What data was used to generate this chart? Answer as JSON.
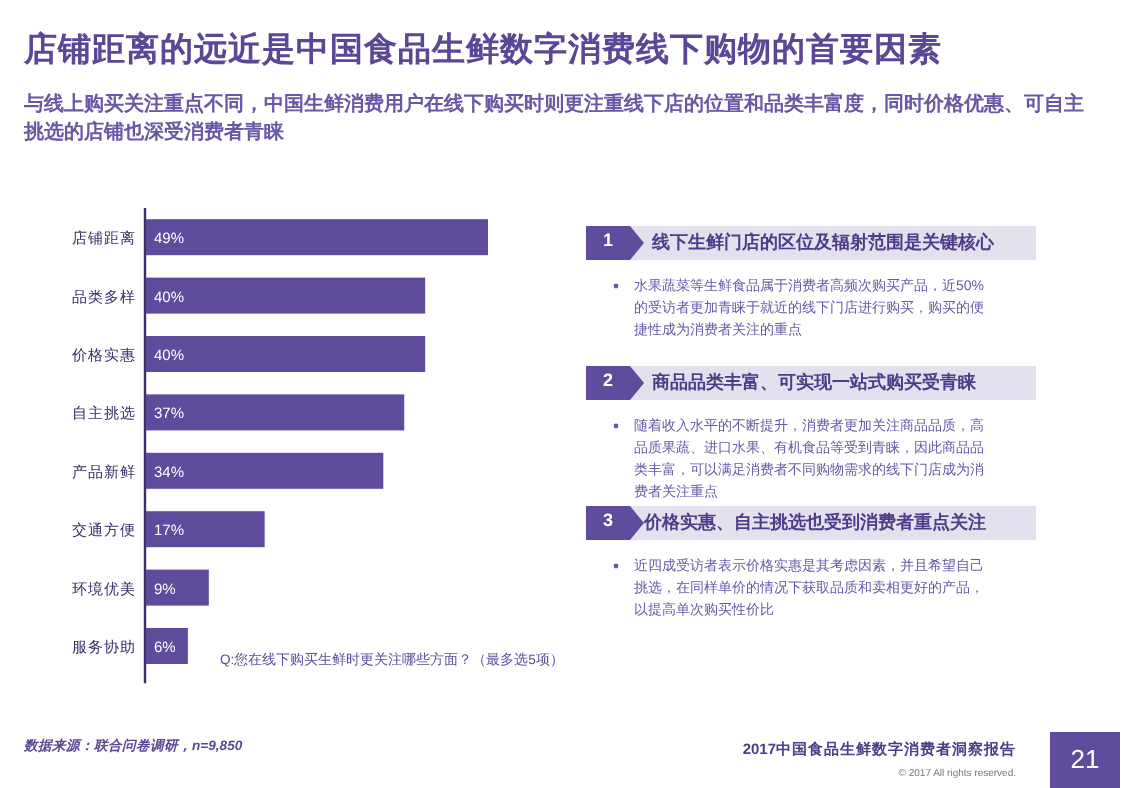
{
  "chart_data": {
    "type": "bar",
    "orientation": "horizontal",
    "title": "店铺距离的远近是中国食品生鲜数字消费线下购物的首要因素",
    "subtitle": "与线上购买关注重点不同，中国生鲜消费用户在线下购买时则更注重线下店的位置和品类丰富度，同时价格优惠、可自主挑选的店铺也深受消费者青睐",
    "categories": [
      "店铺距离",
      "品类多样",
      "价格实惠",
      "自主挑选",
      "产品新鲜",
      "交通方便",
      "环境优美",
      "服务协助"
    ],
    "values": [
      49,
      40,
      40,
      37,
      34,
      17,
      9,
      6
    ],
    "value_labels": [
      "49%",
      "40%",
      "40%",
      "37%",
      "34%",
      "17%",
      "9%",
      "6%"
    ],
    "color": "#5f4b9b",
    "annotations": [
      "Q:您在线下购买生鲜时更关注哪些方面？（最多选5项）",
      "1",
      "线下生鲜门店的区位及辐射范围是关键核心",
      "水果蔬菜等生鲜食品属于消费者高频次购买产品，近50%的受访者更加青睐于就近的线下门店进行购买，购买的便捷性成为消费者关注的重点",
      "2",
      "商品品类丰富、可实现一站式购买受青睐",
      "随着收入水平的不断提升，消费者更加关注商品品质，高品质果蔬、进口水果、有机食品等受到青睐，因此商品品类丰富，可以满足消费者不同购物需求的线下门店成为消费者关注重点",
      "3",
      "价格实惠、自主挑选也受到消费者重点关注",
      "近四成受访者表示价格实惠是其考虑因素，并且希望自己挑选，在同样单价的情况下获取品质和卖相更好的产品，以提高单次购买性价比",
      "数据来源：联合问卷调研，n=9,850",
      "2017中国食品生鲜数字消费者洞察报告",
      "© 2017 All rights reserved.",
      "21"
    ]
  }
}
